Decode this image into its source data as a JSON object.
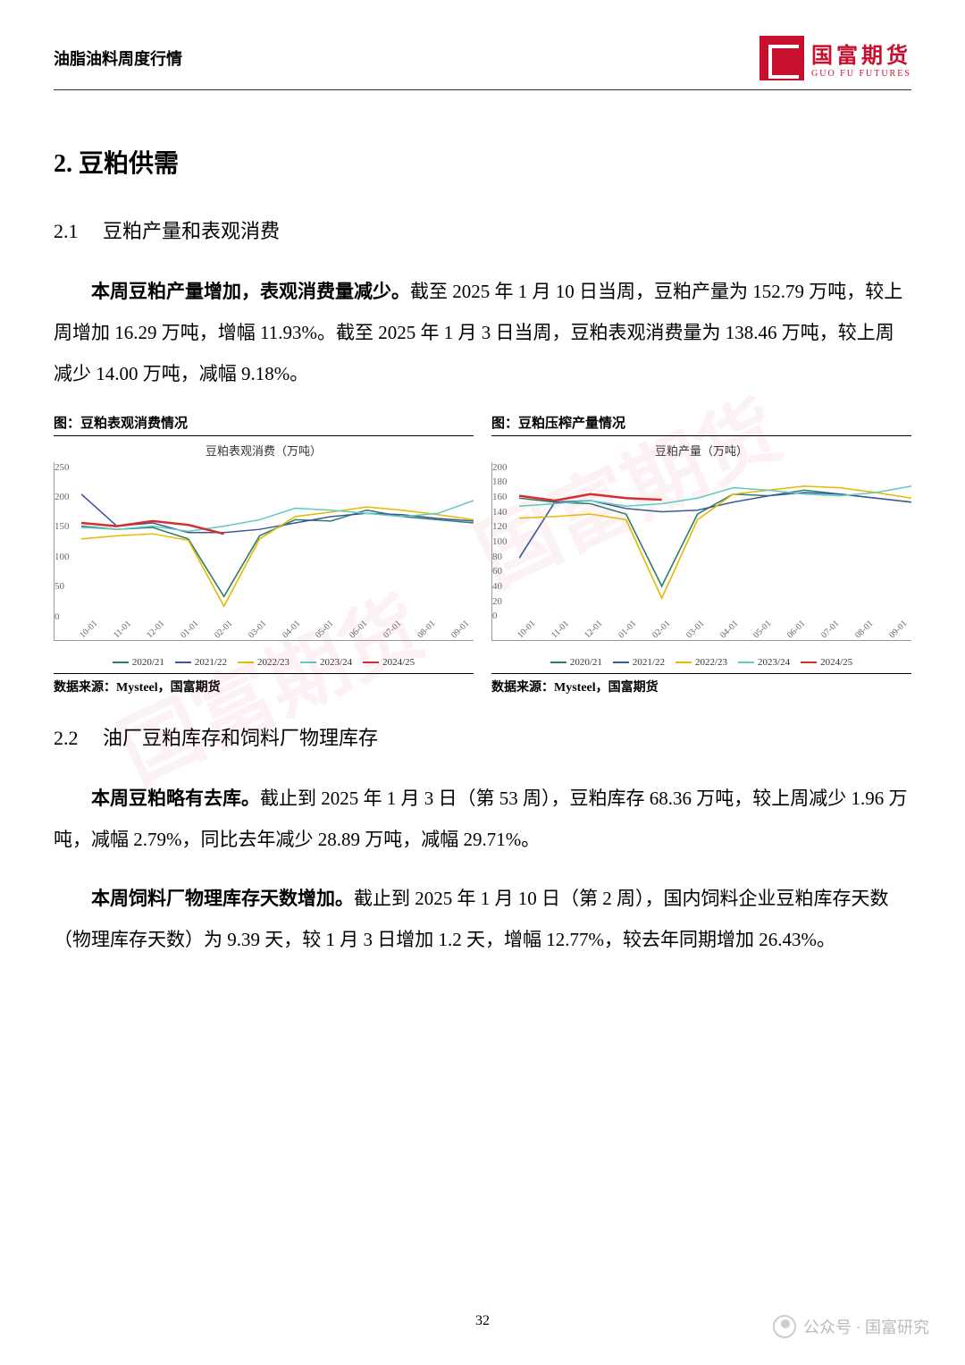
{
  "header": {
    "title": "油脂油料周度行情",
    "logo_cn": "国富期货",
    "logo_en": "GUO FU FUTURES"
  },
  "section": {
    "number": "2.",
    "title": "豆粕供需"
  },
  "sub1": {
    "number": "2.1",
    "title": "豆粕产量和表观消费",
    "lead": "本周豆粕产量增加，表观消费量减少。",
    "body": "截至 2025 年 1 月 10 日当周，豆粕产量为 152.79 万吨，较上周增加 16.29 万吨，增幅 11.93%。截至 2025 年 1 月 3 日当周，豆粕表观消费量为 138.46 万吨，较上周减少 14.00 万吨，减幅 9.18%。"
  },
  "sub2": {
    "number": "2.2",
    "title": "油厂豆粕库存和饲料厂物理库存",
    "p1_lead": "本周豆粕略有去库。",
    "p1_body": "截止到 2025 年 1 月 3 日（第 53 周），豆粕库存 68.36 万吨，较上周减少 1.96 万吨，减幅 2.79%，同比去年减少 28.89 万吨，减幅 29.71%。",
    "p2_lead": "本周饲料厂物理库存天数增加。",
    "p2_body": "截止到 2025 年 1 月 10 日（第 2 周），国内饲料企业豆粕库存天数（物理库存天数）为 9.39 天，较 1 月 3 日增加 1.2 天，增幅 12.77%，较去年同期增加 26.43%。"
  },
  "chart_left": {
    "title": "图：豆粕表观消费情况",
    "subtitle": "豆粕表观消费（万吨）",
    "source": "数据来源：Mysteel，国富期货",
    "ylim": [
      0,
      250
    ],
    "yticks": [
      "250",
      "200",
      "150",
      "100",
      "50",
      "0"
    ],
    "xticks": [
      "10-01",
      "11-01",
      "12-01",
      "01-01",
      "02-01",
      "03-01",
      "04-01",
      "05-01",
      "06-01",
      "07-01",
      "08-01",
      "09-01"
    ],
    "series": [
      {
        "name": "2020/21",
        "color": "#2e7d6b",
        "data": [
          150,
          145,
          148,
          130,
          40,
          135,
          160,
          158,
          175,
          165,
          160,
          155
        ]
      },
      {
        "name": "2021/22",
        "color": "#3b5998",
        "data": [
          200,
          150,
          155,
          140,
          140,
          145,
          155,
          165,
          170,
          168,
          162,
          158
        ]
      },
      {
        "name": "2022/23",
        "color": "#e6b800",
        "data": [
          130,
          135,
          138,
          128,
          25,
          130,
          165,
          172,
          180,
          175,
          168,
          160
        ]
      },
      {
        "name": "2023/24",
        "color": "#5fc9c4",
        "data": [
          148,
          145,
          150,
          142,
          150,
          160,
          178,
          175,
          170,
          165,
          170,
          190
        ]
      },
      {
        "name": "2024/25",
        "color": "#d32f2f",
        "data": [
          155,
          150,
          158,
          152,
          138,
          null,
          null,
          null,
          null,
          null,
          null,
          null
        ]
      }
    ]
  },
  "chart_right": {
    "title": "图：豆粕压榨产量情况",
    "subtitle": "豆粕产量（万吨）",
    "source": "数据来源：Mysteel，国富期货",
    "ylim": [
      0,
      200
    ],
    "yticks": [
      "200",
      "180",
      "160",
      "140",
      "120",
      "100",
      "80",
      "60",
      "40",
      "20",
      "0"
    ],
    "xticks": [
      "10-01",
      "11-01",
      "12-01",
      "01-01",
      "02-01",
      "03-01",
      "04-01",
      "05-01",
      "06-01",
      "07-01",
      "08-01",
      "09-01"
    ],
    "series": [
      {
        "name": "2020/21",
        "color": "#2e7d6b",
        "data": [
          155,
          150,
          148,
          135,
          45,
          135,
          160,
          158,
          165,
          160,
          155,
          150
        ]
      },
      {
        "name": "2021/22",
        "color": "#3b5998",
        "data": [
          80,
          150,
          152,
          142,
          138,
          140,
          150,
          158,
          162,
          160,
          155,
          150
        ]
      },
      {
        "name": "2022/23",
        "color": "#e6b800",
        "data": [
          130,
          132,
          135,
          128,
          30,
          128,
          160,
          165,
          170,
          168,
          162,
          155
        ]
      },
      {
        "name": "2023/24",
        "color": "#5fc9c4",
        "data": [
          145,
          148,
          152,
          145,
          148,
          155,
          168,
          165,
          160,
          158,
          162,
          170
        ]
      },
      {
        "name": "2024/25",
        "color": "#d32f2f",
        "data": [
          158,
          152,
          160,
          155,
          153,
          null,
          null,
          null,
          null,
          null,
          null,
          null
        ]
      }
    ]
  },
  "legend_labels": [
    "2020/21",
    "2021/22",
    "2022/23",
    "2023/24",
    "2024/25"
  ],
  "legend_colors": [
    "#2e7d6b",
    "#3b5998",
    "#e6b800",
    "#5fc9c4",
    "#d32f2f"
  ],
  "page_number": "32",
  "footer": {
    "label": "公众号 · 国富研究"
  }
}
